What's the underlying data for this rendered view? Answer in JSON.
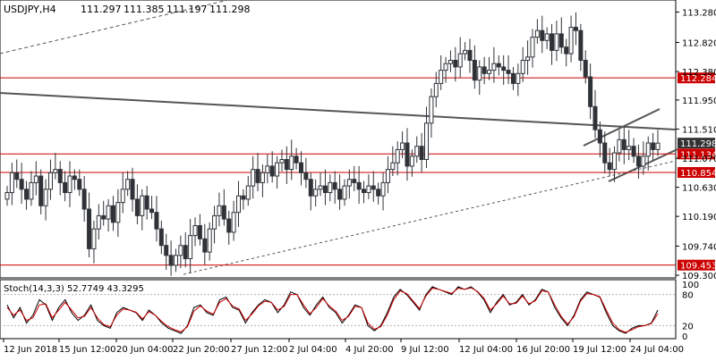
{
  "chart_data": [
    {
      "type": "candlestick",
      "title": "USDJPY,H4",
      "ohlc_header": {
        "open": "111.297",
        "high": "111.385",
        "low": "111.197",
        "close": "111.298"
      },
      "ylim": [
        109.3,
        113.3
      ],
      "y_ticks": [
        "113.280",
        "112.820",
        "112.380",
        "111.950",
        "111.510",
        "111.070",
        "110.630",
        "110.190",
        "109.740",
        "109.300"
      ],
      "x_tick_labels": [
        "12 Jun 2018",
        "15 Jun 12:00",
        "20 Jun 04:00",
        "22 Jun 20:00",
        "27 Jun 12:00",
        "2 Jul 04:00",
        "4 Jul 20:00",
        "9 Jul 12:00",
        "12 Jul 04:00",
        "16 Jul 20:00",
        "19 Jul 12:00",
        "24 Jul 04:00"
      ],
      "close": [
        110.55,
        110.85,
        110.75,
        110.6,
        110.45,
        110.7,
        110.8,
        110.35,
        110.6,
        110.85,
        110.9,
        110.7,
        110.55,
        110.8,
        110.75,
        110.6,
        110.3,
        109.7,
        110.0,
        110.2,
        110.15,
        110.35,
        110.1,
        110.4,
        110.6,
        110.75,
        110.45,
        110.2,
        110.5,
        110.3,
        110.25,
        110.0,
        109.75,
        109.6,
        109.45,
        109.6,
        109.75,
        109.55,
        109.9,
        110.05,
        109.85,
        109.65,
        110.0,
        110.2,
        110.35,
        110.15,
        109.95,
        110.25,
        110.5,
        110.45,
        110.65,
        110.9,
        110.7,
        110.85,
        110.95,
        110.8,
        111.0,
        111.05,
        110.9,
        111.1,
        111.0,
        110.85,
        110.75,
        110.5,
        110.6,
        110.65,
        110.55,
        110.7,
        110.6,
        110.45,
        110.65,
        110.75,
        110.7,
        110.6,
        110.55,
        110.65,
        110.6,
        110.5,
        110.7,
        110.9,
        111.0,
        111.2,
        111.3,
        110.95,
        111.1,
        111.25,
        111.05,
        111.6,
        112.0,
        112.2,
        112.4,
        112.5,
        112.55,
        112.45,
        112.65,
        112.7,
        112.55,
        112.25,
        112.45,
        112.35,
        112.4,
        112.5,
        112.45,
        112.4,
        112.35,
        112.2,
        112.35,
        112.55,
        112.6,
        112.9,
        113.0,
        112.85,
        112.95,
        112.7,
        112.95,
        112.75,
        112.65,
        113.05,
        113.0,
        112.55,
        112.3,
        111.85,
        111.5,
        111.3,
        111.0,
        110.9,
        111.15,
        111.35,
        111.2,
        111.25,
        111.1,
        110.95,
        111.1,
        111.3,
        111.2,
        111.298
      ],
      "levels": [
        {
          "value": "112.284",
          "color": "#cc0000"
        },
        {
          "value": "111.298",
          "color": "#333333"
        },
        {
          "value": "111.134",
          "color": "#cc0000"
        },
        {
          "value": "110.854",
          "color": "#cc0000"
        },
        {
          "value": "109.453",
          "color": "#cc0000"
        }
      ]
    },
    {
      "type": "line",
      "title": "Stoch(14,3,3) 52.7749 43.3295",
      "ylim": [
        0,
        100
      ],
      "y_ticks": [
        "100",
        "80",
        "20",
        "0"
      ],
      "series": [
        {
          "color": "#000000",
          "values": [
            60,
            35,
            55,
            25,
            40,
            70,
            60,
            30,
            55,
            70,
            45,
            30,
            40,
            60,
            30,
            20,
            15,
            45,
            55,
            50,
            45,
            30,
            50,
            40,
            25,
            15,
            10,
            5,
            20,
            55,
            60,
            45,
            40,
            70,
            75,
            55,
            50,
            25,
            45,
            60,
            70,
            65,
            45,
            60,
            85,
            80,
            55,
            40,
            60,
            75,
            55,
            45,
            25,
            40,
            60,
            55,
            20,
            10,
            20,
            45,
            75,
            90,
            80,
            65,
            50,
            80,
            95,
            90,
            85,
            80,
            95,
            90,
            95,
            85,
            70,
            45,
            65,
            80,
            60,
            65,
            80,
            60,
            70,
            90,
            85,
            55,
            35,
            20,
            40,
            70,
            85,
            80,
            75,
            45,
            20,
            10,
            5,
            15,
            20,
            20,
            25,
            50
          ]
        },
        {
          "color": "#cc0000",
          "values": [
            55,
            40,
            50,
            30,
            35,
            60,
            62,
            35,
            50,
            65,
            50,
            35,
            38,
            55,
            35,
            22,
            18,
            40,
            52,
            50,
            46,
            33,
            47,
            40,
            28,
            18,
            12,
            8,
            18,
            48,
            58,
            48,
            42,
            65,
            72,
            58,
            52,
            30,
            42,
            58,
            67,
            65,
            50,
            57,
            80,
            80,
            60,
            43,
            55,
            72,
            58,
            48,
            30,
            38,
            57,
            55,
            25,
            13,
            18,
            40,
            70,
            87,
            82,
            68,
            53,
            77,
            92,
            90,
            86,
            82,
            92,
            90,
            93,
            86,
            73,
            50,
            62,
            77,
            62,
            63,
            77,
            62,
            68,
            87,
            85,
            60,
            38,
            23,
            37,
            67,
            82,
            80,
            76,
            50,
            25,
            12,
            7,
            12,
            18,
            20,
            24,
            43
          ]
        }
      ]
    }
  ]
}
